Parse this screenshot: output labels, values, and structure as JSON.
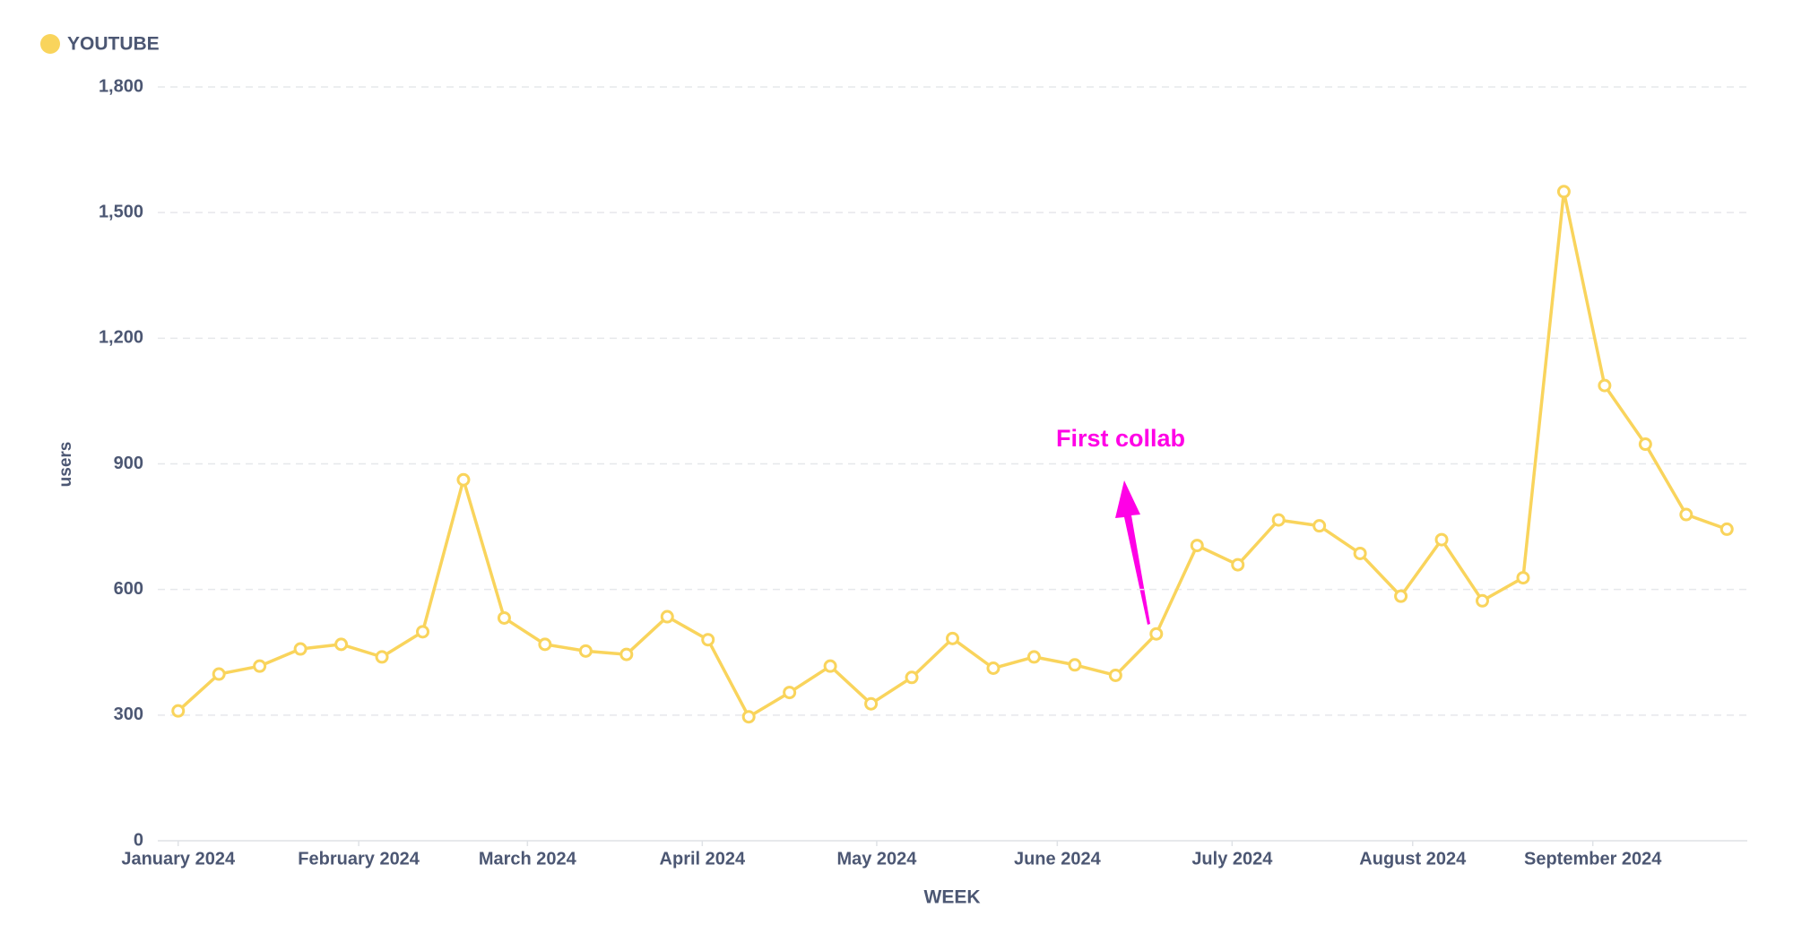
{
  "chart_data": {
    "type": "line",
    "legend": "top-left",
    "x_label": "WEEK",
    "y_label": "users",
    "annotation": "First collab",
    "annotation_color": "#ff00e6",
    "grid": true,
    "x": [
      0,
      1,
      2,
      3,
      4,
      5,
      6,
      7,
      8,
      9,
      10,
      11,
      12,
      13,
      14,
      15,
      16,
      17,
      18,
      19,
      20,
      21,
      22,
      23,
      24,
      25,
      26,
      27,
      28,
      29,
      30,
      31,
      32,
      33,
      34,
      35,
      36,
      37,
      38
    ],
    "series": [
      {
        "name": "YOUTUBE",
        "color": "#f9d45c",
        "values": [
          310,
          398,
          417,
          458,
          469,
          439,
          499,
          862,
          532,
          469,
          453,
          445,
          535,
          480,
          296,
          354,
          417,
          327,
          390,
          483,
          412,
          439,
          420,
          395,
          494,
          705,
          659,
          766,
          752,
          686,
          584,
          719,
          573,
          628,
          1550,
          1087,
          947,
          779,
          744
        ]
      }
    ],
    "xlim": [
      -0.5,
      38.5
    ],
    "xticks": [
      {
        "value": 0,
        "label": "January 2024"
      },
      {
        "value": 4.43,
        "label": "February 2024"
      },
      {
        "value": 8.57,
        "label": "March 2024"
      },
      {
        "value": 12.86,
        "label": "April 2024"
      },
      {
        "value": 17.14,
        "label": "May 2024"
      },
      {
        "value": 21.57,
        "label": "June 2024"
      },
      {
        "value": 25.86,
        "label": "July 2024"
      },
      {
        "value": 30.29,
        "label": "August 2024"
      },
      {
        "value": 34.71,
        "label": "September 2024"
      }
    ],
    "ylim": [
      0,
      1800
    ],
    "yticks": [
      0,
      300,
      600,
      900,
      {
        "value": 1200,
        "label": "1,200"
      },
      {
        "value": 1500,
        "label": "1,500"
      },
      {
        "value": 1800,
        "label": "1,800"
      }
    ]
  }
}
